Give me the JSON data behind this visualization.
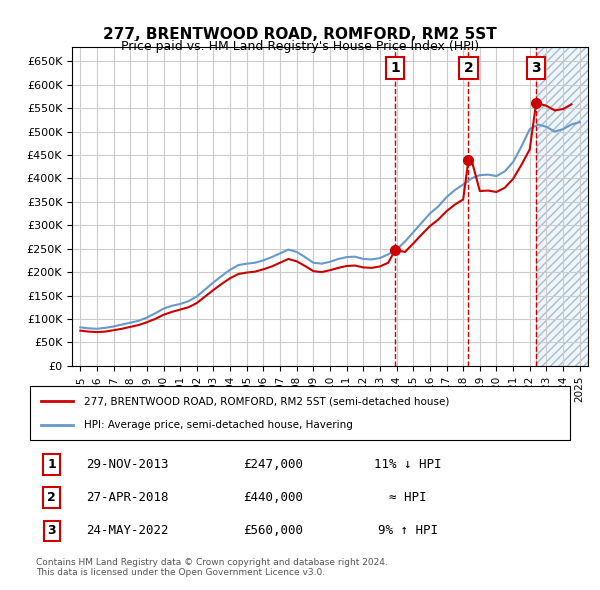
{
  "title1": "277, BRENTWOOD ROAD, ROMFORD, RM2 5ST",
  "title2": "Price paid vs. HM Land Registry's House Price Index (HPI)",
  "legend_line1": "277, BRENTWOOD ROAD, ROMFORD, RM2 5ST (semi-detached house)",
  "legend_line2": "HPI: Average price, semi-detached house, Havering",
  "sale_points": [
    {
      "label": "1",
      "date": "29-NOV-2013",
      "price": 247000,
      "x": 2013.91
    },
    {
      "label": "2",
      "date": "27-APR-2018",
      "price": 440000,
      "x": 2018.32
    },
    {
      "label": "3",
      "date": "24-MAY-2022",
      "price": 560000,
      "x": 2022.38
    }
  ],
  "table_rows": [
    {
      "num": "1",
      "date": "29-NOV-2013",
      "price": "£247,000",
      "note": "11% ↓ HPI"
    },
    {
      "num": "2",
      "date": "27-APR-2018",
      "price": "£440,000",
      "note": "≈ HPI"
    },
    {
      "num": "3",
      "date": "24-MAY-2022",
      "price": "£560,000",
      "note": "9% ↑ HPI"
    }
  ],
  "footnote1": "Contains HM Land Registry data © Crown copyright and database right 2024.",
  "footnote2": "This data is licensed under the Open Government Licence v3.0.",
  "ylim": [
    0,
    680000
  ],
  "xlim": [
    1994.5,
    2025.5
  ],
  "yticks": [
    0,
    50000,
    100000,
    150000,
    200000,
    250000,
    300000,
    350000,
    400000,
    450000,
    500000,
    550000,
    600000,
    650000
  ],
  "ytick_labels": [
    "£0",
    "£50K",
    "£100K",
    "£150K",
    "£200K",
    "£250K",
    "£300K",
    "£350K",
    "£400K",
    "£450K",
    "£500K",
    "£550K",
    "£600K",
    "£650K"
  ],
  "xticks": [
    1995,
    1996,
    1997,
    1998,
    1999,
    2000,
    2001,
    2002,
    2003,
    2004,
    2005,
    2006,
    2007,
    2008,
    2009,
    2010,
    2011,
    2012,
    2013,
    2014,
    2015,
    2016,
    2017,
    2018,
    2019,
    2020,
    2021,
    2022,
    2023,
    2024,
    2025
  ],
  "hpi_color": "#6699cc",
  "sale_color": "#cc0000",
  "vline_color": "#cc0000",
  "bg_color": "#ddeeff",
  "hatch_color": "#aabbcc",
  "grid_color": "#cccccc"
}
